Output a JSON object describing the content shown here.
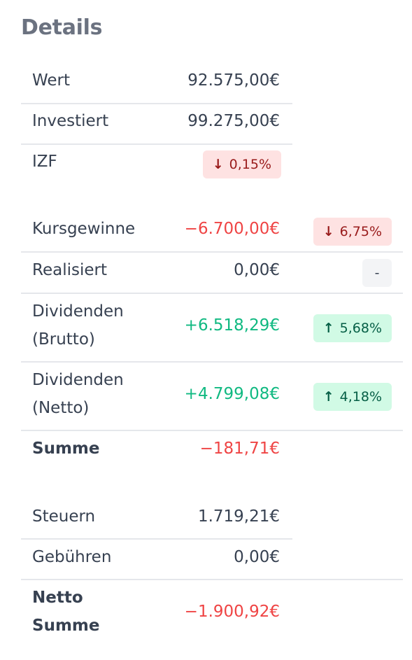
{
  "title": "Details",
  "summary_top": {
    "value": {
      "label": "Wert",
      "amount": "92.575,00€"
    },
    "invested": {
      "label": "Investiert",
      "amount": "99.275,00€"
    },
    "irr": {
      "label": "IZF",
      "arrow": "↓",
      "percent": "0,15%"
    }
  },
  "gains": {
    "price_gains": {
      "label": "Kursgewinne",
      "amount": "−6.700,00€",
      "arrow": "↓",
      "percent": "6,75%"
    },
    "realized": {
      "label": "Realisiert",
      "amount": "0,00€",
      "badge": "-"
    },
    "dividends_gross": {
      "label_line1": "Dividenden",
      "label_line2": "(Brutto)",
      "amount": "+6.518,29€",
      "arrow": "↑",
      "percent": "5,68%"
    },
    "dividends_net": {
      "label_line1": "Dividenden",
      "label_line2": "(Netto)",
      "amount": "+4.799,08€",
      "arrow": "↑",
      "percent": "4,18%"
    },
    "sum": {
      "label": "Summe",
      "amount": "−181,71€"
    }
  },
  "costs": {
    "taxes": {
      "label": "Steuern",
      "amount": "1.719,21€"
    },
    "fees": {
      "label": "Gebühren",
      "amount": "0,00€"
    },
    "net_sum": {
      "label_line1": "Netto",
      "label_line2": "Summe",
      "amount": "−1.900,92€"
    }
  },
  "colors": {
    "positive": "#10b981",
    "negative": "#ef4444",
    "pill_red_bg": "#fee2e2",
    "pill_green_bg": "#d1fae5",
    "pill_gray_bg": "#f3f4f6"
  }
}
